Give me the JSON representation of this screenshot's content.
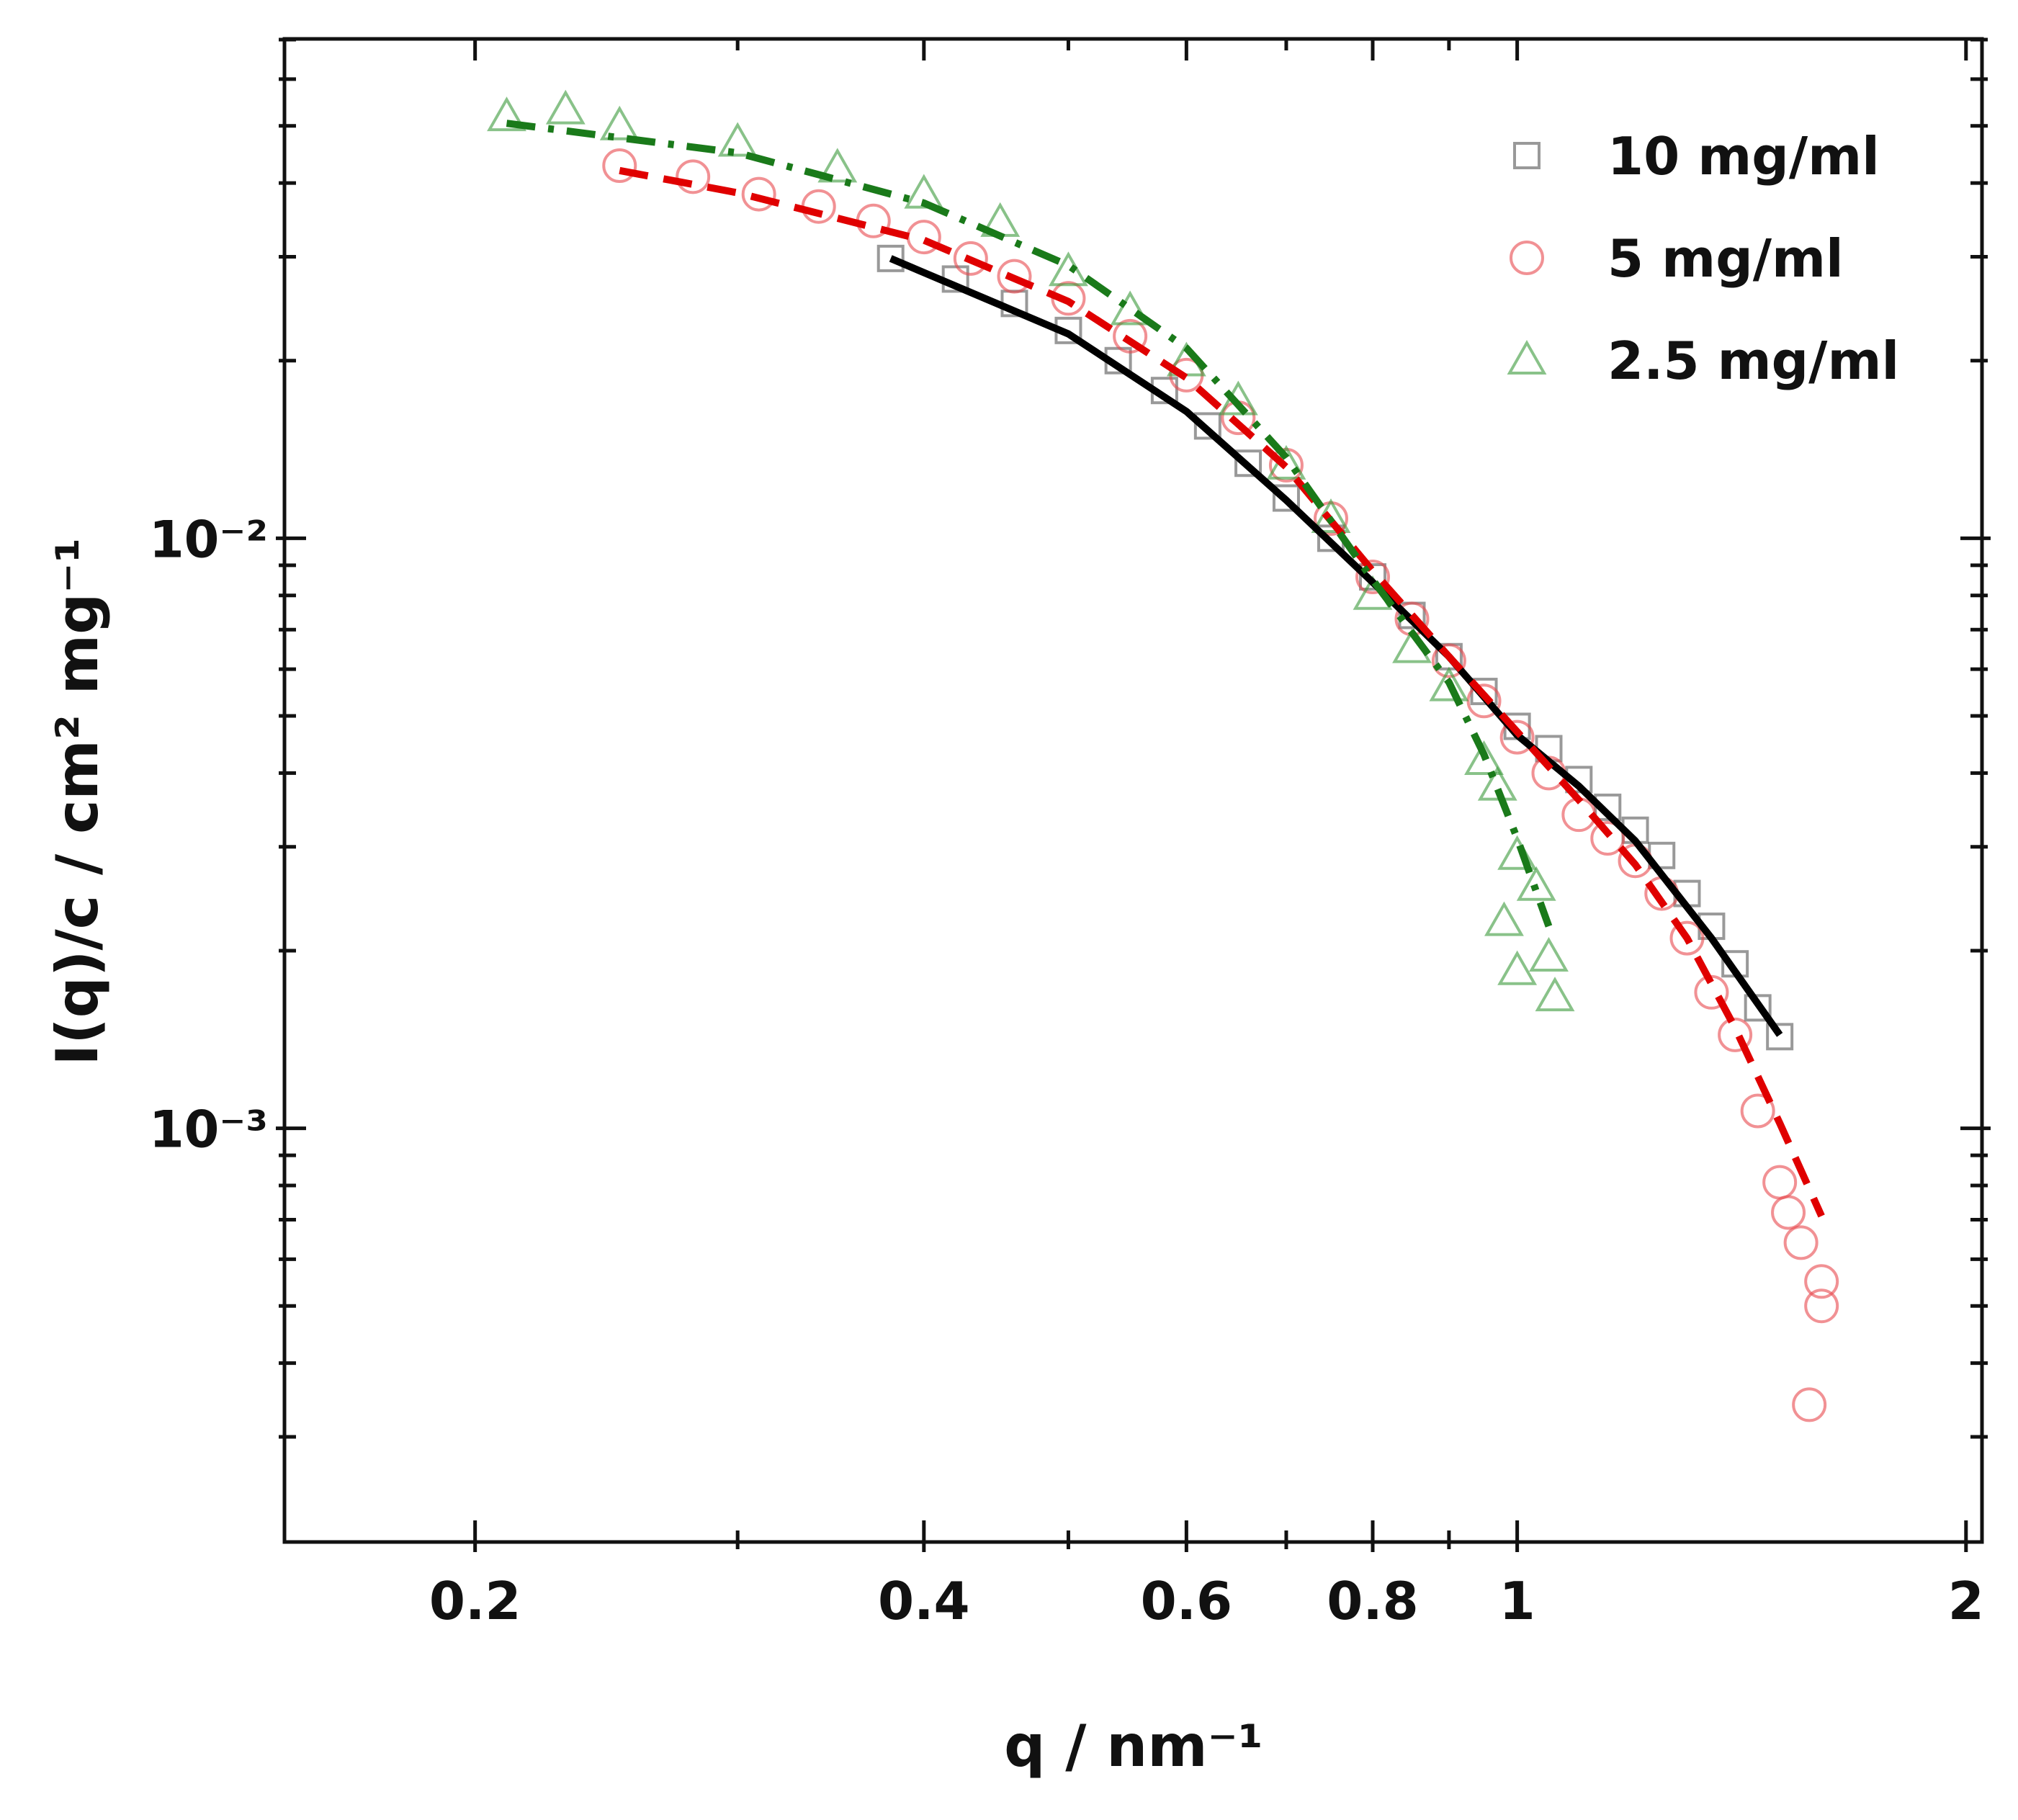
{
  "chart_data": {
    "type": "scatter",
    "xlabel": "q / nm⁻¹",
    "ylabel": "I(q)/c / cm² mg⁻¹",
    "xscale": "log",
    "yscale": "log",
    "xlim": [
      0.149,
      2.05
    ],
    "ylim": [
      0.000199,
      0.0702
    ],
    "xticks": [
      0.2,
      0.4,
      0.6,
      0.8,
      1,
      2
    ],
    "xminorticks": [
      0.3,
      0.5,
      0.7,
      0.9
    ],
    "yticks": [
      {
        "value": 0.001,
        "label": "10⁻³"
      },
      {
        "value": 0.01,
        "label": "10⁻²"
      }
    ],
    "yminorticks": [
      0.0003,
      0.0004,
      0.0005,
      0.0006,
      0.0007,
      0.0008,
      0.0009,
      0.002,
      0.003,
      0.004,
      0.005,
      0.006,
      0.007,
      0.008,
      0.009,
      0.02,
      0.03,
      0.04,
      0.05,
      0.06,
      0.07
    ],
    "legend": "upper right",
    "series": [
      {
        "name": "10 mg/ml",
        "color": "#555555",
        "marker": "square",
        "x": [
          0.38,
          0.42,
          0.46,
          0.5,
          0.54,
          0.58,
          0.62,
          0.66,
          0.7,
          0.75,
          0.8,
          0.85,
          0.9,
          0.95,
          1.0,
          1.05,
          1.1,
          1.15,
          1.2,
          1.25,
          1.3,
          1.35,
          1.4,
          1.45,
          1.5
        ],
        "values": [
          0.0298,
          0.0275,
          0.025,
          0.0225,
          0.02,
          0.0178,
          0.0155,
          0.0134,
          0.0117,
          0.01,
          0.0086,
          0.0074,
          0.0063,
          0.0055,
          0.0048,
          0.0044,
          0.0039,
          0.0035,
          0.0032,
          0.0029,
          0.0025,
          0.0022,
          0.0019,
          0.0016,
          0.00143
        ]
      },
      {
        "name": "5 mg/ml",
        "color": "#e8484c",
        "marker": "circle",
        "x": [
          0.25,
          0.28,
          0.31,
          0.34,
          0.37,
          0.4,
          0.43,
          0.46,
          0.5,
          0.55,
          0.6,
          0.65,
          0.7,
          0.75,
          0.8,
          0.85,
          0.9,
          0.95,
          1.0,
          1.05,
          1.1,
          1.15,
          1.2,
          1.25,
          1.3,
          1.35,
          1.4,
          1.45,
          1.5,
          1.52,
          1.55,
          1.57,
          1.6,
          1.6
        ],
        "values": [
          0.0428,
          0.041,
          0.0383,
          0.0365,
          0.0345,
          0.0324,
          0.0298,
          0.0278,
          0.0255,
          0.022,
          0.0189,
          0.016,
          0.0133,
          0.0108,
          0.0086,
          0.0073,
          0.0062,
          0.0053,
          0.0046,
          0.004,
          0.0034,
          0.0031,
          0.00284,
          0.0025,
          0.0021,
          0.0017,
          0.00144,
          0.00107,
          0.00081,
          0.00072,
          0.00064,
          0.00034,
          0.0005,
          0.00055
        ]
      },
      {
        "name": "2.5 mg/ml",
        "color": "#3a9a3a",
        "marker": "triangle",
        "x": [
          0.21,
          0.23,
          0.25,
          0.3,
          0.35,
          0.4,
          0.45,
          0.5,
          0.55,
          0.6,
          0.65,
          0.7,
          0.75,
          0.8,
          0.85,
          0.9,
          0.95,
          0.97,
          0.98,
          1.0,
          1.0,
          1.03,
          1.05,
          1.06
        ],
        "values": [
          0.0518,
          0.0532,
          0.05,
          0.0469,
          0.0424,
          0.0383,
          0.0343,
          0.0283,
          0.0243,
          0.0199,
          0.0171,
          0.0133,
          0.0108,
          0.008,
          0.0065,
          0.0056,
          0.0042,
          0.0038,
          0.00224,
          0.0029,
          0.00185,
          0.00257,
          0.00195,
          0.00167
        ]
      }
    ],
    "fits": [
      {
        "color": "#000000",
        "dash": "solid",
        "x": [
          0.38,
          0.5,
          0.6,
          0.7,
          0.8,
          0.9,
          1.0,
          1.1,
          1.2,
          1.35,
          1.5
        ],
        "values": [
          0.0298,
          0.0222,
          0.0164,
          0.0116,
          0.00842,
          0.0063,
          0.00464,
          0.0038,
          0.00307,
          0.0021,
          0.00144
        ]
      },
      {
        "color": "#e00000",
        "dash": "dashed",
        "x": [
          0.25,
          0.3,
          0.4,
          0.5,
          0.6,
          0.7,
          0.8,
          0.9,
          1.0,
          1.1,
          1.2,
          1.3,
          1.4,
          1.5,
          1.6
        ],
        "values": [
          0.042,
          0.0385,
          0.032,
          0.0252,
          0.0187,
          0.0132,
          0.0088,
          0.0063,
          0.0047,
          0.0036,
          0.0028,
          0.0021,
          0.00148,
          0.00102,
          0.00071
        ]
      },
      {
        "color": "#1a7a1a",
        "dash": "dashdot",
        "x": [
          0.21,
          0.3,
          0.4,
          0.5,
          0.6,
          0.7,
          0.8,
          0.9,
          0.95,
          1.0,
          1.05
        ],
        "values": [
          0.0505,
          0.045,
          0.037,
          0.029,
          0.021,
          0.0137,
          0.0085,
          0.0057,
          0.0043,
          0.0031,
          0.0022
        ]
      }
    ]
  }
}
